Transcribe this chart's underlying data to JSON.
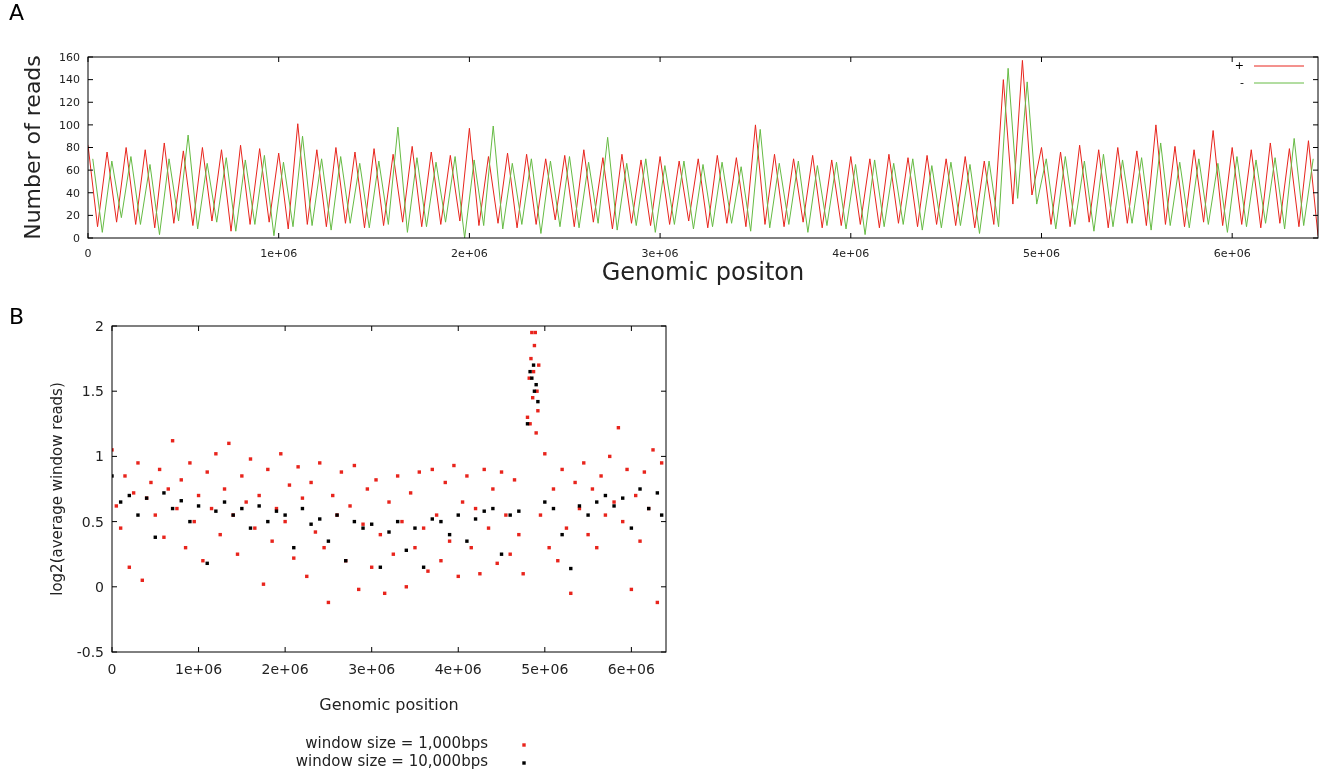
{
  "chart_data": [
    {
      "type": "line",
      "title": "A",
      "xlabel": "Genomic positon",
      "ylabel": "Number of reads",
      "xlim": [
        0,
        6450000
      ],
      "ylim": [
        0,
        160
      ],
      "xticks": [
        0,
        {
          "value": 1000000,
          "label": "1e+06"
        },
        {
          "value": 2000000,
          "label": "2e+06"
        },
        {
          "value": 3000000,
          "label": "3e+06"
        },
        {
          "value": 4000000,
          "label": "4e+06"
        },
        {
          "value": 5000000,
          "label": "5e+06"
        },
        {
          "value": 6000000,
          "label": "6e+06"
        }
      ],
      "yticks": [
        0,
        20,
        40,
        60,
        80,
        100,
        120,
        140,
        160
      ],
      "grid": false,
      "legend": "top right",
      "line_style": "solid",
      "series": [
        {
          "name": "+",
          "color": "#e8241c",
          "x": [
            0,
            50000,
            100000,
            150000,
            200000,
            250000,
            300000,
            350000,
            400000,
            450000,
            500000,
            550000,
            600000,
            650000,
            700000,
            750000,
            800000,
            850000,
            900000,
            950000,
            1000000,
            1050000,
            1100000,
            1150000,
            1200000,
            1250000,
            1300000,
            1350000,
            1400000,
            1450000,
            1500000,
            1550000,
            1600000,
            1650000,
            1700000,
            1750000,
            1800000,
            1850000,
            1900000,
            1950000,
            2000000,
            2050000,
            2100000,
            2150000,
            2200000,
            2250000,
            2300000,
            2350000,
            2400000,
            2450000,
            2500000,
            2550000,
            2600000,
            2650000,
            2700000,
            2750000,
            2800000,
            2850000,
            2900000,
            2950000,
            3000000,
            3050000,
            3100000,
            3150000,
            3200000,
            3250000,
            3300000,
            3350000,
            3400000,
            3450000,
            3500000,
            3550000,
            3600000,
            3650000,
            3700000,
            3750000,
            3800000,
            3850000,
            3900000,
            3950000,
            4000000,
            4050000,
            4100000,
            4150000,
            4200000,
            4250000,
            4300000,
            4350000,
            4400000,
            4450000,
            4500000,
            4550000,
            4600000,
            4650000,
            4700000,
            4750000,
            4800000,
            4850000,
            4900000,
            4950000,
            5000000,
            5050000,
            5100000,
            5150000,
            5200000,
            5250000,
            5300000,
            5350000,
            5400000,
            5450000,
            5500000,
            5550000,
            5600000,
            5650000,
            5700000,
            5750000,
            5800000,
            5850000,
            5900000,
            5950000,
            6000000,
            6050000,
            6100000,
            6150000,
            6200000,
            6250000,
            6300000,
            6350000,
            6400000,
            6450000
          ],
          "values": [
            82,
            10,
            76,
            14,
            80,
            12,
            78,
            9,
            84,
            13,
            77,
            11,
            80,
            15,
            78,
            6,
            82,
            12,
            79,
            14,
            75,
            8,
            101,
            12,
            78,
            10,
            80,
            13,
            76,
            9,
            79,
            11,
            74,
            14,
            81,
            10,
            76,
            12,
            73,
            15,
            97,
            11,
            72,
            13,
            75,
            9,
            74,
            12,
            70,
            16,
            73,
            10,
            78,
            14,
            71,
            8,
            74,
            13,
            69,
            11,
            72,
            12,
            68,
            15,
            70,
            9,
            73,
            13,
            71,
            10,
            100,
            12,
            74,
            10,
            70,
            14,
            73,
            9,
            69,
            11,
            72,
            12,
            70,
            9,
            74,
            13,
            71,
            10,
            73,
            12,
            70,
            11,
            72,
            9,
            68,
            12,
            140,
            30,
            157,
            38,
            80,
            12,
            76,
            10,
            82,
            14,
            78,
            9,
            80,
            13,
            77,
            11,
            100,
            12,
            81,
            10,
            78,
            14,
            95,
            11,
            80,
            12,
            78,
            9,
            84,
            13,
            79,
            10,
            86,
            2
          ]
        },
        {
          "name": "-",
          "color": "#66bb44",
          "x": [
            25000,
            75000,
            125000,
            175000,
            225000,
            275000,
            325000,
            375000,
            425000,
            475000,
            525000,
            575000,
            625000,
            675000,
            725000,
            775000,
            825000,
            875000,
            925000,
            975000,
            1025000,
            1075000,
            1125000,
            1175000,
            1225000,
            1275000,
            1325000,
            1375000,
            1425000,
            1475000,
            1525000,
            1575000,
            1625000,
            1675000,
            1725000,
            1775000,
            1825000,
            1875000,
            1925000,
            1975000,
            2025000,
            2075000,
            2125000,
            2175000,
            2225000,
            2275000,
            2325000,
            2375000,
            2425000,
            2475000,
            2525000,
            2575000,
            2625000,
            2675000,
            2725000,
            2775000,
            2825000,
            2875000,
            2925000,
            2975000,
            3025000,
            3075000,
            3125000,
            3175000,
            3225000,
            3275000,
            3325000,
            3375000,
            3425000,
            3475000,
            3525000,
            3575000,
            3625000,
            3675000,
            3725000,
            3775000,
            3825000,
            3875000,
            3925000,
            3975000,
            4025000,
            4075000,
            4125000,
            4175000,
            4225000,
            4275000,
            4325000,
            4375000,
            4425000,
            4475000,
            4525000,
            4575000,
            4625000,
            4675000,
            4725000,
            4775000,
            4825000,
            4875000,
            4925000,
            4975000,
            5025000,
            5075000,
            5125000,
            5175000,
            5225000,
            5275000,
            5325000,
            5375000,
            5425000,
            5475000,
            5525000,
            5575000,
            5625000,
            5675000,
            5725000,
            5775000,
            5825000,
            5875000,
            5925000,
            5975000,
            6025000,
            6075000,
            6125000,
            6175000,
            6225000,
            6275000,
            6325000,
            6375000,
            6425000
          ],
          "values": [
            70,
            5,
            68,
            18,
            72,
            12,
            65,
            3,
            70,
            15,
            91,
            8,
            66,
            14,
            71,
            6,
            69,
            12,
            73,
            2,
            67,
            10,
            90,
            11,
            70,
            7,
            72,
            13,
            66,
            9,
            68,
            12,
            98,
            5,
            71,
            10,
            67,
            14,
            72,
            0,
            69,
            11,
            99,
            8,
            66,
            12,
            70,
            4,
            68,
            10,
            72,
            9,
            67,
            13,
            89,
            7,
            66,
            11,
            70,
            5,
            64,
            12,
            68,
            8,
            65,
            10,
            67,
            13,
            63,
            6,
            96,
            9,
            66,
            12,
            68,
            5,
            64,
            11,
            67,
            8,
            65,
            3,
            69,
            10,
            66,
            12,
            70,
            7,
            64,
            9,
            67,
            11,
            65,
            4,
            68,
            10,
            150,
            35,
            138,
            30,
            70,
            8,
            72,
            12,
            68,
            6,
            74,
            10,
            69,
            13,
            71,
            7,
            84,
            11,
            67,
            9,
            70,
            12,
            66,
            5,
            72,
            10,
            69,
            13,
            71,
            8,
            88,
            11,
            70
          ]
        }
      ]
    },
    {
      "type": "scatter",
      "title": "B",
      "xlabel": "Genomic position",
      "ylabel": "log2(average window reads)",
      "xlim": [
        0,
        6400000
      ],
      "ylim": [
        -0.5,
        2
      ],
      "xticks": [
        0,
        {
          "value": 1000000,
          "label": "1e+06"
        },
        {
          "value": 2000000,
          "label": "2e+06"
        },
        {
          "value": 3000000,
          "label": "3e+06"
        },
        {
          "value": 4000000,
          "label": "4e+06"
        },
        {
          "value": 5000000,
          "label": "5e+06"
        },
        {
          "value": 6000000,
          "label": "6e+06"
        }
      ],
      "yticks": [
        -0.5,
        0,
        0.5,
        1,
        1.5,
        2
      ],
      "grid": false,
      "legend": "bottom",
      "marker": "square",
      "series": [
        {
          "name": "window size = 1,000bps",
          "color": "#e8241c",
          "x": [
            0,
            50000,
            100000,
            150000,
            200000,
            250000,
            300000,
            350000,
            400000,
            450000,
            500000,
            550000,
            600000,
            650000,
            700000,
            750000,
            800000,
            850000,
            900000,
            950000,
            1000000,
            1050000,
            1100000,
            1150000,
            1200000,
            1250000,
            1300000,
            1350000,
            1400000,
            1450000,
            1500000,
            1550000,
            1600000,
            1650000,
            1700000,
            1750000,
            1800000,
            1850000,
            1900000,
            1950000,
            2000000,
            2050000,
            2100000,
            2150000,
            2200000,
            2250000,
            2300000,
            2350000,
            2400000,
            2450000,
            2500000,
            2550000,
            2600000,
            2650000,
            2700000,
            2750000,
            2800000,
            2850000,
            2900000,
            2950000,
            3000000,
            3050000,
            3100000,
            3150000,
            3200000,
            3250000,
            3300000,
            3350000,
            3400000,
            3450000,
            3500000,
            3550000,
            3600000,
            3650000,
            3700000,
            3750000,
            3800000,
            3850000,
            3900000,
            3950000,
            4000000,
            4050000,
            4100000,
            4150000,
            4200000,
            4250000,
            4300000,
            4350000,
            4400000,
            4450000,
            4500000,
            4550000,
            4600000,
            4650000,
            4700000,
            4750000,
            4800000,
            4850000,
            4900000,
            4950000,
            5000000,
            5050000,
            5100000,
            5150000,
            5200000,
            5250000,
            5300000,
            5350000,
            5400000,
            5450000,
            5500000,
            5550000,
            5600000,
            5650000,
            5700000,
            5750000,
            5800000,
            5850000,
            5900000,
            5950000,
            6000000,
            6050000,
            6100000,
            6150000,
            6200000,
            6250000,
            6300000,
            6350000,
            4820000,
            4840000,
            4860000,
            4880000,
            4910000,
            4930000,
            4830000,
            4870000,
            4920000,
            4890000
          ],
          "values": [
            1.05,
            0.62,
            0.45,
            0.85,
            0.15,
            0.72,
            0.95,
            0.05,
            0.68,
            0.8,
            0.55,
            0.9,
            0.38,
            0.75,
            1.12,
            0.6,
            0.82,
            0.3,
            0.95,
            0.5,
            0.7,
            0.2,
            0.88,
            0.6,
            1.02,
            0.4,
            0.75,
            1.1,
            0.55,
            0.25,
            0.85,
            0.65,
            0.98,
            0.45,
            0.7,
            0.02,
            0.9,
            0.35,
            0.6,
            1.02,
            0.5,
            0.78,
            0.22,
            0.92,
            0.68,
            0.08,
            0.8,
            0.42,
            0.95,
            0.3,
            -0.12,
            0.7,
            0.55,
            0.88,
            0.2,
            0.62,
            0.93,
            -0.02,
            0.48,
            0.75,
            0.15,
            0.82,
            0.4,
            -0.05,
            0.65,
            0.25,
            0.85,
            0.5,
            0.0,
            0.72,
            0.3,
            0.88,
            0.45,
            0.12,
            0.9,
            0.55,
            0.2,
            0.8,
            0.35,
            0.93,
            0.08,
            0.65,
            0.85,
            0.3,
            0.6,
            0.1,
            0.9,
            0.45,
            0.75,
            0.18,
            0.88,
            0.55,
            0.25,
            0.82,
            0.4,
            0.1,
            1.3,
            1.95,
            1.18,
            0.55,
            1.02,
            0.3,
            0.75,
            0.2,
            0.9,
            0.45,
            -0.05,
            0.8,
            0.6,
            0.95,
            0.4,
            0.75,
            0.3,
            0.85,
            0.55,
            1.0,
            0.65,
            1.22,
            0.5,
            0.9,
            -0.02,
            0.7,
            0.35,
            0.88,
            0.6,
            1.05,
            -0.12,
            0.95,
            1.6,
            1.75,
            1.45,
            1.85,
            1.5,
            1.7,
            1.25,
            1.65,
            1.35,
            1.95
          ]
        },
        {
          "name": "window size = 10,000bps",
          "color": "#000000",
          "x": [
            0,
            100000,
            200000,
            300000,
            400000,
            500000,
            600000,
            700000,
            800000,
            900000,
            1000000,
            1100000,
            1200000,
            1300000,
            1400000,
            1500000,
            1600000,
            1700000,
            1800000,
            1900000,
            2000000,
            2100000,
            2200000,
            2300000,
            2400000,
            2500000,
            2600000,
            2700000,
            2800000,
            2900000,
            3000000,
            3100000,
            3200000,
            3300000,
            3400000,
            3500000,
            3600000,
            3700000,
            3800000,
            3900000,
            4000000,
            4100000,
            4200000,
            4300000,
            4400000,
            4500000,
            4600000,
            4700000,
            4800000,
            4850000,
            4900000,
            4830000,
            4880000,
            4920000,
            4870000,
            5000000,
            5100000,
            5200000,
            5300000,
            5400000,
            5500000,
            5600000,
            5700000,
            5800000,
            5900000,
            6000000,
            6100000,
            6200000,
            6300000,
            6350000
          ],
          "values": [
            0.85,
            0.65,
            0.7,
            0.55,
            0.68,
            0.38,
            0.72,
            0.6,
            0.66,
            0.5,
            0.62,
            0.18,
            0.58,
            0.65,
            0.55,
            0.6,
            0.45,
            0.62,
            0.5,
            0.58,
            0.55,
            0.3,
            0.6,
            0.48,
            0.52,
            0.35,
            0.55,
            0.2,
            0.5,
            0.45,
            0.48,
            0.15,
            0.42,
            0.5,
            0.28,
            0.45,
            0.15,
            0.52,
            0.5,
            0.4,
            0.55,
            0.35,
            0.52,
            0.58,
            0.6,
            0.25,
            0.55,
            0.58,
            1.25,
            1.6,
            1.55,
            1.65,
            1.5,
            1.42,
            1.7,
            0.65,
            0.6,
            0.4,
            0.14,
            0.62,
            0.55,
            0.65,
            0.7,
            0.62,
            0.68,
            0.45,
            0.75,
            0.6,
            0.72,
            0.55
          ]
        }
      ]
    }
  ]
}
